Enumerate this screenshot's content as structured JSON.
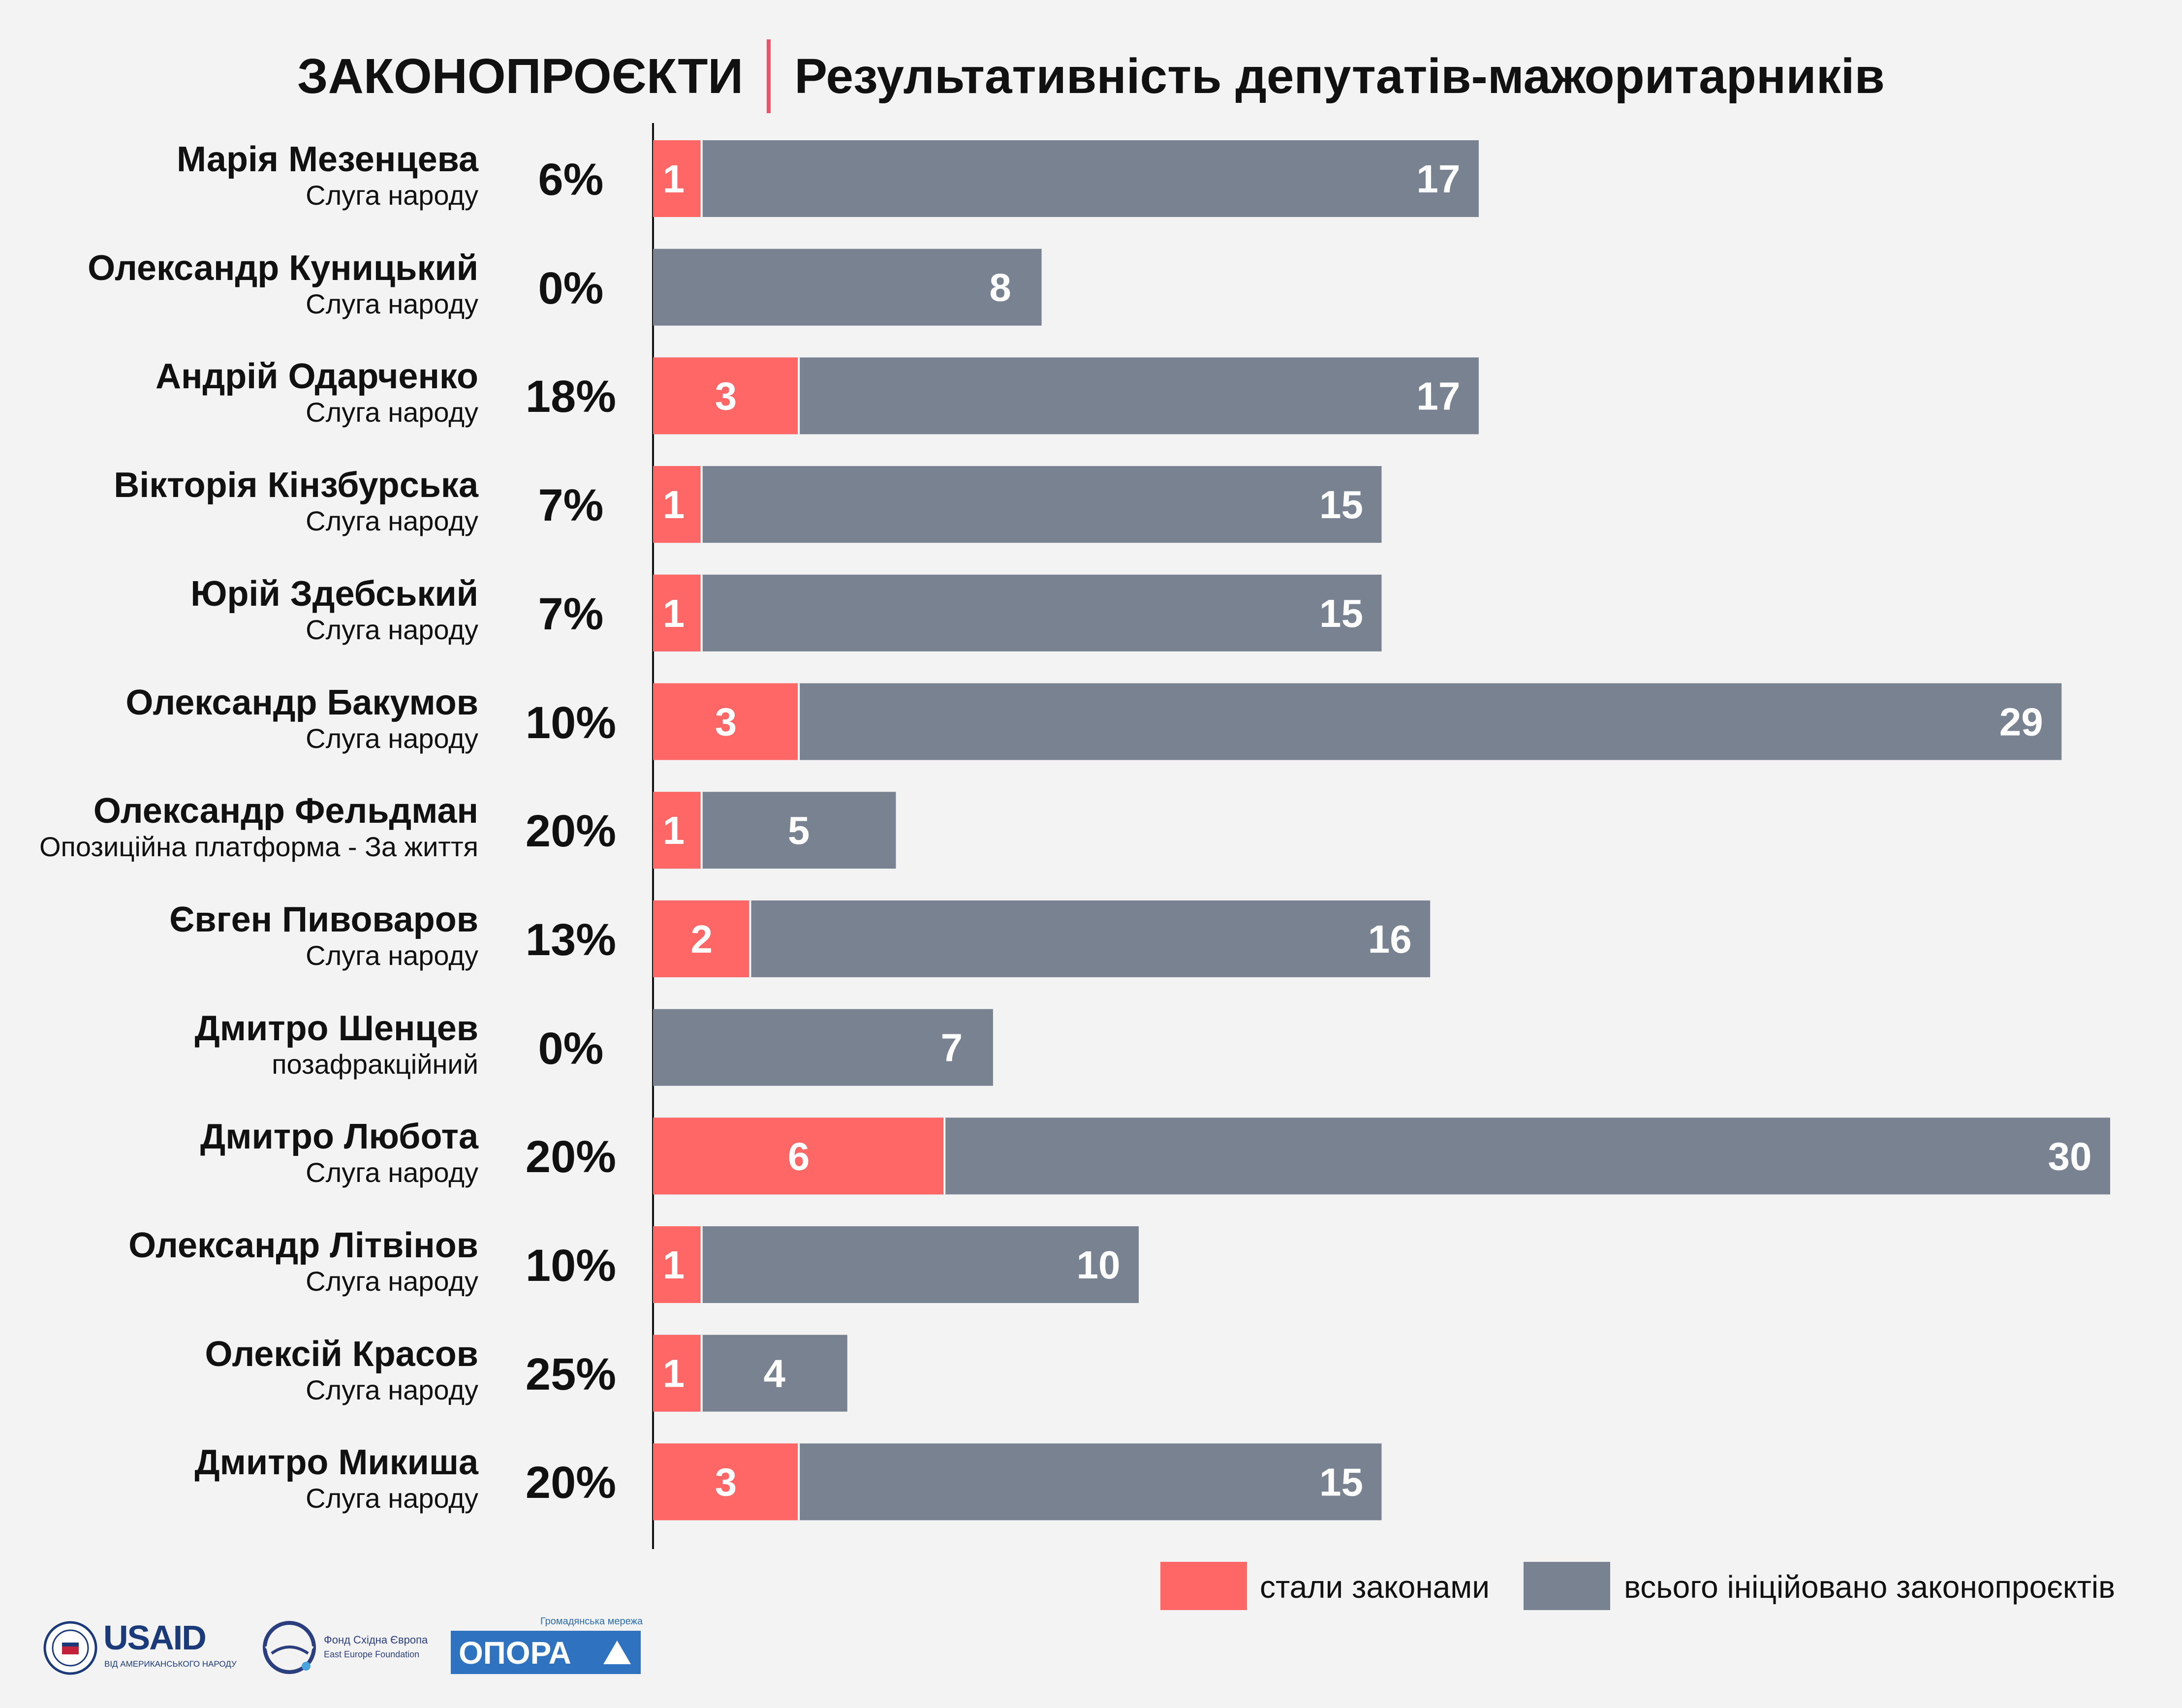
{
  "title": {
    "left": "ЗАКОНОПРОЄКТИ",
    "right": "Результативність депутатів-мажоритарників"
  },
  "colors": {
    "laws": "#ff6666",
    "total": "#788291",
    "accent": "#e8556a",
    "background": "#f3f3f3"
  },
  "legend": {
    "laws": "стали законами",
    "total": "всього ініційовано законопроєктів"
  },
  "chart_data": {
    "type": "bar",
    "orientation": "horizontal",
    "stacked": "overlay",
    "xlim": [
      0,
      30
    ],
    "series": [
      {
        "name": "стали законами",
        "key": "laws"
      },
      {
        "name": "всього ініційовано законопроєктів",
        "key": "total"
      }
    ],
    "rows": [
      {
        "name": "Марія Мезенцева",
        "party": "Слуга народу",
        "pct": "6%",
        "laws": 1,
        "total": 17
      },
      {
        "name": "Олександр Куницький",
        "party": "Слуга народу",
        "pct": "0%",
        "laws": 0,
        "total": 8
      },
      {
        "name": "Андрій Одарченко",
        "party": "Слуга народу",
        "pct": "18%",
        "laws": 3,
        "total": 17
      },
      {
        "name": "Вікторія Кінзбурська",
        "party": "Слуга народу",
        "pct": "7%",
        "laws": 1,
        "total": 15
      },
      {
        "name": "Юрій Здебський",
        "party": "Слуга народу",
        "pct": "7%",
        "laws": 1,
        "total": 15
      },
      {
        "name": "Олександр Бакумов",
        "party": "Слуга народу",
        "pct": "10%",
        "laws": 3,
        "total": 29
      },
      {
        "name": "Олександр Фельдман",
        "party": "Опозиційна платформа - За життя",
        "pct": "20%",
        "laws": 1,
        "total": 5
      },
      {
        "name": "Євген Пивоваров",
        "party": "Слуга народу",
        "pct": "13%",
        "laws": 2,
        "total": 16
      },
      {
        "name": "Дмитро Шенцев",
        "party": "позафракційний",
        "pct": "0%",
        "laws": 0,
        "total": 7
      },
      {
        "name": "Дмитро Любота",
        "party": "Слуга народу",
        "pct": "20%",
        "laws": 6,
        "total": 30
      },
      {
        "name": "Олександр Літвінов",
        "party": "Слуга народу",
        "pct": "10%",
        "laws": 1,
        "total": 10
      },
      {
        "name": "Олексій Красов",
        "party": "Слуга народу",
        "pct": "25%",
        "laws": 1,
        "total": 4
      },
      {
        "name": "Дмитро Микиша",
        "party": "Слуга народу",
        "pct": "20%",
        "laws": 3,
        "total": 15
      }
    ]
  },
  "logos": {
    "usaid": {
      "name": "USAID",
      "sub": "ВІД АМЕРИКАНСЬКОГО НАРОДУ"
    },
    "eef": {
      "name": "Фонд Східна Європа",
      "sub": "East Europe Foundation"
    },
    "opora": {
      "top": "Громадянська мережа",
      "name": "ОПОРА"
    }
  }
}
